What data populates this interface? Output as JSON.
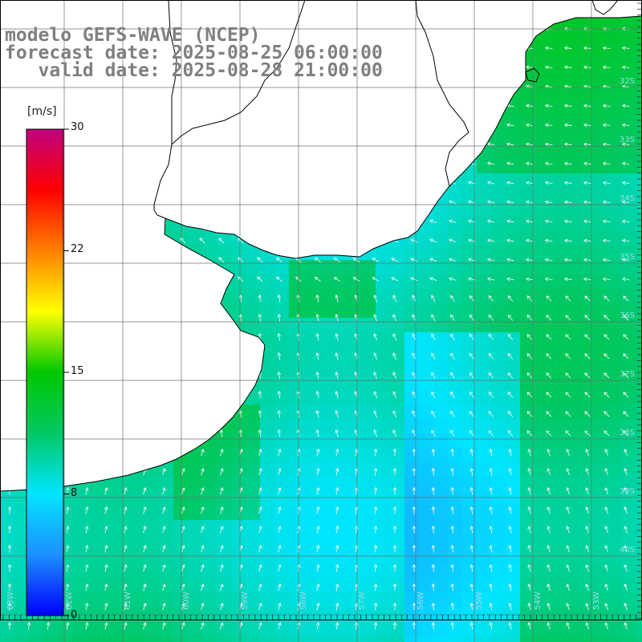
{
  "header": {
    "line1": "modelo GEFS-WAVE (NCEP)",
    "line2": "forecast date: 2025-08-25 06:00:00",
    "line3": "   valid date: 2025-08-28 21:00:00"
  },
  "colorbar": {
    "unit": "[m/s]",
    "min": 0,
    "max": 30,
    "ticks": [
      "30",
      "22",
      "15",
      "8",
      "0"
    ],
    "tick_values": [
      30,
      22.5,
      15,
      7.5,
      0
    ],
    "colors": [
      "#0000ff",
      "#1e90ff",
      "#00e5ff",
      "#00c864",
      "#00c800",
      "#ffff00",
      "#ff8000",
      "#ff0000",
      "#c00080"
    ]
  },
  "map": {
    "title": "modelo GEFS-WAVE (NCEP)",
    "variable": "wind speed",
    "lat_labels": [
      "32S",
      "33S",
      "34S",
      "35S",
      "36S",
      "37S",
      "38S",
      "39S",
      "40S"
    ],
    "lon_labels": [
      "63W",
      "62W",
      "61W",
      "60W",
      "59W",
      "58W",
      "57W",
      "56W",
      "55W",
      "54W",
      "53W"
    ],
    "land_color": "#ffffff",
    "arrow_color": "#ffffff",
    "grid_color": "#707070"
  }
}
